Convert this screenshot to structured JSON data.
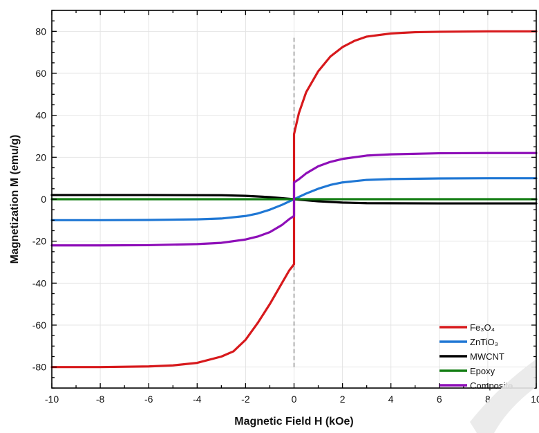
{
  "chart_data": {
    "type": "line",
    "title": "",
    "xlabel": "Magnetic Field H (kOe)",
    "ylabel": "Magnetization M (emu/g)",
    "xlim": [
      -10,
      10
    ],
    "ylim": [
      -90,
      90
    ],
    "x_ticks": [
      -10,
      -8,
      -6,
      -4,
      -2,
      0,
      2,
      4,
      6,
      8,
      10
    ],
    "y_ticks": [
      -80,
      -60,
      -40,
      -20,
      0,
      20,
      40,
      60,
      80
    ],
    "grid": true,
    "legend_position": "bottom-right",
    "vertical_reference_line": {
      "x": 0,
      "style": "dashed",
      "color": "#808080",
      "y_range": [
        -80,
        78
      ]
    },
    "horizontal_reference_line": {
      "y": 0,
      "style": "dashed",
      "color": "#808080"
    },
    "series": [
      {
        "name": "Fe₃O₄",
        "color": "#d7191c",
        "x": [
          -10,
          -8,
          -6,
          -5,
          -4,
          -3,
          -2.5,
          -2,
          -1.5,
          -1,
          -0.5,
          -0.2,
          0,
          0,
          0.2,
          0.5,
          1,
          1.5,
          2,
          2.5,
          3,
          4,
          5,
          6,
          8,
          10
        ],
        "y": [
          -80,
          -80,
          -79.7,
          -79.2,
          -78,
          -75,
          -72.5,
          -67,
          -59,
          -50,
          -40,
          -34,
          -31,
          31,
          41,
          51,
          61,
          68,
          72.5,
          75.5,
          77.5,
          79,
          79.6,
          79.8,
          80,
          80
        ]
      },
      {
        "name": "ZnTiO₃",
        "color": "#1f77d4",
        "x": [
          -10,
          -8,
          -6,
          -4,
          -3,
          -2,
          -1.5,
          -1,
          -0.5,
          0,
          0.5,
          1,
          1.5,
          2,
          3,
          4,
          6,
          8,
          10
        ],
        "y": [
          -10,
          -10,
          -9.9,
          -9.6,
          -9.2,
          -8,
          -6.8,
          -5,
          -2.7,
          0,
          2.7,
          5,
          6.8,
          8,
          9.2,
          9.6,
          9.9,
          10,
          10
        ]
      },
      {
        "name": "MWCNT",
        "color": "#000000",
        "x": [
          -10,
          -6,
          -3,
          -2,
          -1,
          -0.5,
          0,
          0.5,
          1,
          2,
          3,
          6,
          10
        ],
        "y": [
          2,
          2,
          1.9,
          1.6,
          1,
          0.5,
          0,
          -0.5,
          -1,
          -1.6,
          -1.9,
          -2,
          -2
        ]
      },
      {
        "name": "Epoxy",
        "color": "#137d13",
        "x": [
          -10,
          10
        ],
        "y": [
          0,
          0
        ]
      },
      {
        "name": "Composite",
        "color": "#8e0fb8",
        "x": [
          -10,
          -8,
          -6,
          -4,
          -3,
          -2,
          -1.5,
          -1,
          -0.5,
          -0.2,
          0,
          0,
          0.2,
          0.5,
          1,
          1.5,
          2,
          3,
          4,
          6,
          8,
          10
        ],
        "y": [
          -22,
          -22,
          -21.9,
          -21.4,
          -20.8,
          -19.2,
          -17.8,
          -15.7,
          -12.3,
          -9.5,
          -8,
          8,
          9.5,
          12.3,
          15.7,
          17.8,
          19.2,
          20.8,
          21.4,
          21.9,
          22,
          22
        ]
      }
    ]
  }
}
